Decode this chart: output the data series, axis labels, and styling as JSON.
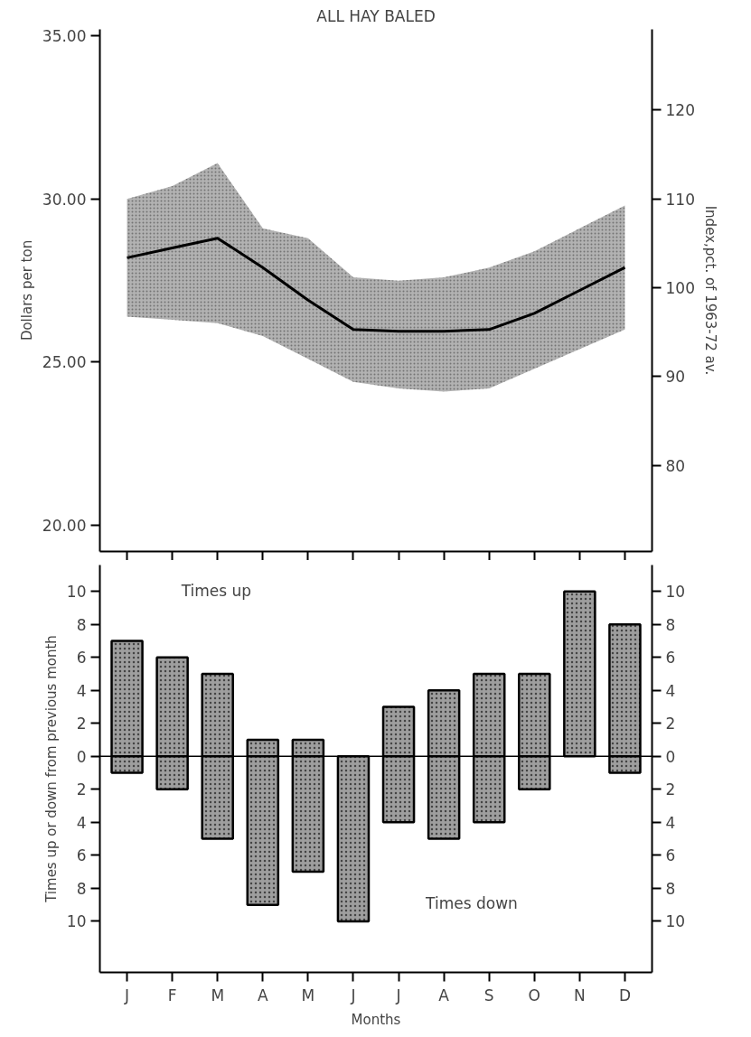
{
  "chart_data": [
    {
      "type": "line",
      "title": "ALL HAY BALED",
      "ylabel": "Dollars per ton",
      "y2label": "Index,pct. of 1963-72 av.",
      "categories": [
        null,
        null,
        null,
        null,
        null,
        null,
        null,
        null,
        null,
        null,
        null,
        null
      ],
      "series": [
        {
          "color": "#000000",
          "values": [
            28.2,
            28.5,
            28.8,
            27.9,
            26.9,
            26.0,
            25.95,
            25.95,
            26.0,
            26.5,
            27.2,
            27.9
          ],
          "lower": [
            26.4,
            26.3,
            26.2,
            25.8,
            25.1,
            24.4,
            24.2,
            24.1,
            24.2,
            24.8,
            25.4,
            26.0
          ],
          "upper": [
            30.0,
            30.4,
            31.1,
            29.1,
            28.8,
            27.6,
            27.5,
            27.6,
            27.9,
            28.4,
            29.1,
            29.8
          ]
        }
      ],
      "ylim": [
        19.2,
        35.2
      ],
      "yticks": [
        {
          "value": 20,
          "label": "20.00"
        },
        {
          "value": 25,
          "label": "25.00"
        },
        {
          "value": 30,
          "label": "30.00"
        },
        {
          "value": 35,
          "label": "35.00"
        }
      ],
      "y2lim": [
        70.3,
        129.1
      ],
      "y2ticks": [
        80,
        90,
        100,
        110,
        120
      ],
      "tick_labels": "y",
      "grid": false,
      "line_style": "solid",
      "marker": "none"
    },
    {
      "type": "bar",
      "ylabel": "Times up or down from previous month",
      "xlabel": "Months",
      "stacked": true,
      "categories": [
        "J",
        "F",
        "M",
        "A",
        "M",
        "J",
        "J",
        "A",
        "S",
        "O",
        "N",
        "D"
      ],
      "series": [
        {
          "color": "#9e9e9e",
          "values": [
            7,
            6,
            5,
            1,
            1,
            0,
            3,
            4,
            5,
            5,
            10,
            8
          ]
        },
        {
          "color": "#9e9e9e",
          "values": [
            -1,
            -2,
            -5,
            -9,
            -7,
            -10,
            -4,
            -5,
            -4,
            -2,
            0,
            -1
          ]
        }
      ],
      "annotations": [
        "Times up",
        "Times down"
      ],
      "ylim": [
        -13.1,
        11.6
      ],
      "yticks": [
        {
          "value": -10,
          "label": "10"
        },
        {
          "value": -8,
          "label": "8"
        },
        {
          "value": -6,
          "label": "6"
        },
        {
          "value": -4,
          "label": "4"
        },
        {
          "value": -2,
          "label": "2"
        },
        0,
        2,
        4,
        6,
        8,
        10
      ],
      "y2lim": [
        -13.1,
        11.6
      ],
      "y2ticks": [
        {
          "value": -10,
          "label": "10"
        },
        {
          "value": -8,
          "label": "8"
        },
        {
          "value": -6,
          "label": "6"
        },
        {
          "value": -4,
          "label": "4"
        },
        {
          "value": -2,
          "label": "2"
        },
        0,
        2,
        4,
        6,
        8,
        10
      ],
      "ref_lines": [
        {
          "axis": "y",
          "value": 0
        }
      ],
      "grid": false
    }
  ]
}
